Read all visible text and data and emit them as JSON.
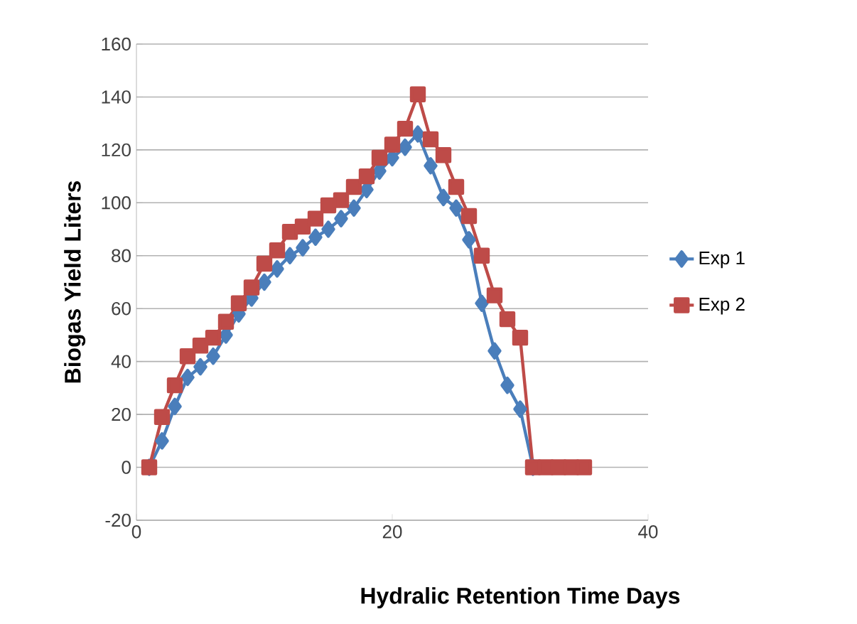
{
  "chart_data": {
    "type": "line",
    "xlabel": "Hydralic Retention Time Days",
    "ylabel": "Biogas Yield Liters",
    "xlim": [
      0,
      40
    ],
    "xticks": [
      0,
      20,
      40
    ],
    "ylim": [
      -20,
      160
    ],
    "yticks": [
      -20,
      0,
      20,
      40,
      60,
      80,
      100,
      120,
      140,
      160
    ],
    "grid": "y",
    "legend": "right",
    "series": [
      {
        "name": "Exp 1",
        "color": "#4a7ebb",
        "marker": "diamond",
        "x": [
          1,
          2,
          3,
          4,
          5,
          6,
          7,
          8,
          9,
          10,
          11,
          12,
          13,
          14,
          15,
          16,
          17,
          18,
          19,
          20,
          21,
          22,
          23,
          24,
          25,
          26,
          27,
          28,
          29,
          30,
          31
        ],
        "values": [
          0,
          10,
          23,
          34,
          38,
          42,
          50,
          58,
          64,
          70,
          75,
          80,
          83,
          87,
          90,
          94,
          98,
          105,
          112,
          117,
          121,
          126,
          114,
          102,
          98,
          86,
          62,
          44,
          31,
          22,
          0
        ]
      },
      {
        "name": "Exp 2",
        "color": "#be4b48",
        "marker": "square",
        "x": [
          1,
          2,
          3,
          4,
          5,
          6,
          7,
          8,
          9,
          10,
          11,
          12,
          13,
          14,
          15,
          16,
          17,
          18,
          19,
          20,
          21,
          22,
          23,
          24,
          25,
          26,
          27,
          28,
          29,
          30,
          31,
          32,
          33,
          34,
          35
        ],
        "values": [
          0,
          19,
          31,
          42,
          46,
          49,
          55,
          62,
          68,
          77,
          82,
          89,
          91,
          94,
          99,
          101,
          106,
          110,
          117,
          122,
          128,
          141,
          124,
          118,
          106,
          95,
          80,
          65,
          56,
          49,
          0,
          0,
          0,
          0,
          0
        ]
      }
    ]
  }
}
